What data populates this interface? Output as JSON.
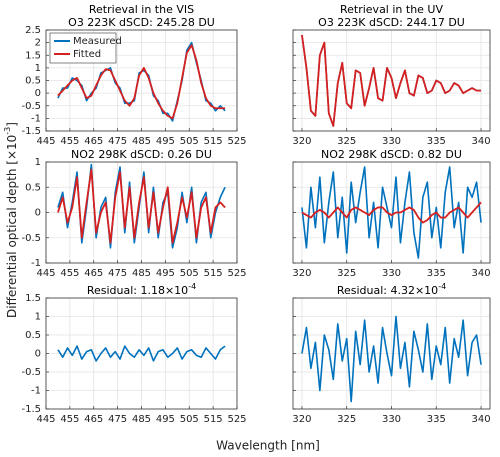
{
  "figure": {
    "xlabel": "Wavelength [nm]",
    "ylabel": "Differential optical depth [×10",
    "ylabel_sup": "-3",
    "ylabel_end": "]"
  },
  "chart_data": [
    {
      "type": "line",
      "title": [
        "Retrieval in the VIS",
        "O3 223K dSCD: 245.28 DU"
      ],
      "x": [
        450,
        452,
        454,
        456,
        458,
        460,
        462,
        464,
        466,
        468,
        470,
        472,
        474,
        476,
        478,
        480,
        482,
        484,
        486,
        488,
        490,
        492,
        494,
        496,
        498,
        500,
        502,
        504,
        506,
        508,
        510,
        512,
        514,
        516,
        518,
        520
      ],
      "series": [
        {
          "name": "Measured",
          "color": "#0072bd",
          "values": [
            -0.2,
            0.2,
            0.2,
            0.6,
            0.5,
            0.3,
            -0.3,
            0.0,
            0.2,
            0.8,
            0.9,
            1.0,
            0.4,
            0.2,
            -0.4,
            -0.4,
            -0.3,
            0.8,
            0.9,
            0.7,
            -0.1,
            -0.3,
            -0.8,
            -0.8,
            -1.1,
            -0.3,
            0.5,
            1.7,
            2.0,
            1.2,
            0.5,
            -0.3,
            -0.4,
            -0.7,
            -0.5,
            -0.7
          ]
        },
        {
          "name": "Fitted",
          "color": "#d62020",
          "values": [
            -0.1,
            0.1,
            0.3,
            0.5,
            0.6,
            0.2,
            -0.2,
            -0.1,
            0.3,
            0.7,
            0.95,
            0.9,
            0.5,
            0.1,
            -0.3,
            -0.5,
            -0.2,
            0.7,
            1.0,
            0.6,
            0.0,
            -0.4,
            -0.7,
            -0.9,
            -1.0,
            -0.4,
            0.6,
            1.6,
            1.9,
            1.3,
            0.4,
            -0.2,
            -0.5,
            -0.6,
            -0.6,
            -0.6
          ]
        }
      ],
      "xlim": [
        445,
        525
      ],
      "ylim": [
        -1.5,
        2.5
      ],
      "xticks": [
        445,
        455,
        465,
        475,
        485,
        495,
        505,
        515,
        525
      ],
      "yticks": [
        -1.5,
        -1,
        -0.5,
        0,
        0.5,
        1,
        1.5,
        2,
        2.5
      ],
      "ytick_labels": true,
      "grid": true,
      "legend": "northwest"
    },
    {
      "type": "line",
      "title": [
        "Retrieval in the UV",
        "O3 223K dSCD: 244.17 DU"
      ],
      "x": [
        320,
        320.5,
        321,
        321.5,
        322,
        322.5,
        323,
        323.5,
        324,
        324.5,
        325,
        325.5,
        326,
        326.5,
        327,
        327.5,
        328,
        328.5,
        329,
        329.5,
        330,
        330.5,
        331,
        331.5,
        332,
        332.5,
        333,
        333.5,
        334,
        334.5,
        335,
        335.5,
        336,
        336.5,
        337,
        337.5,
        338,
        338.5,
        339,
        339.5,
        340
      ],
      "series": [
        {
          "color": "#0072bd",
          "values": [
            2.3,
            1.0,
            -0.7,
            -0.9,
            1.5,
            2.0,
            -0.8,
            -1.3,
            0.4,
            1.2,
            -0.4,
            -0.6,
            0.9,
            0.8,
            -0.5,
            0.2,
            1.0,
            -0.2,
            -0.3,
            1.0,
            0.6,
            -0.2,
            0.4,
            0.9,
            0.0,
            -0.1,
            0.7,
            0.6,
            0.0,
            0.1,
            0.5,
            0.4,
            0.0,
            0.1,
            0.4,
            0.3,
            0.0,
            0.1,
            0.2,
            0.1,
            0.1
          ]
        },
        {
          "color": "#d62020",
          "values": [
            2.3,
            1.0,
            -0.7,
            -0.9,
            1.5,
            2.0,
            -0.8,
            -1.3,
            0.4,
            1.2,
            -0.4,
            -0.6,
            0.9,
            0.8,
            -0.5,
            0.2,
            1.0,
            -0.2,
            -0.3,
            1.0,
            0.6,
            -0.2,
            0.4,
            0.9,
            0.0,
            -0.1,
            0.7,
            0.6,
            0.0,
            0.1,
            0.5,
            0.4,
            0.0,
            0.1,
            0.4,
            0.3,
            0.0,
            0.1,
            0.2,
            0.1,
            0.1
          ]
        }
      ],
      "xlim": [
        319,
        341
      ],
      "ylim": [
        -1.5,
        2.5
      ],
      "xticks": [
        320,
        325,
        330,
        335,
        340
      ],
      "yticks": [
        -1.5,
        -1,
        -0.5,
        0,
        0.5,
        1,
        1.5,
        2,
        2.5
      ],
      "ytick_labels": false,
      "grid": true
    },
    {
      "type": "line",
      "title": [
        "NO2 298K dSCD: 0.26 DU"
      ],
      "x": [
        450,
        452,
        454,
        456,
        458,
        460,
        462,
        464,
        466,
        468,
        470,
        472,
        474,
        476,
        478,
        480,
        482,
        484,
        486,
        488,
        490,
        492,
        494,
        496,
        498,
        500,
        502,
        504,
        506,
        508,
        510,
        512,
        514,
        516,
        518,
        520
      ],
      "series": [
        {
          "color": "#0072bd",
          "values": [
            0.1,
            0.4,
            -0.3,
            0.2,
            0.8,
            -0.6,
            0.1,
            0.95,
            -0.5,
            0.1,
            0.3,
            -0.7,
            0.4,
            0.9,
            -0.4,
            0.6,
            -0.6,
            0.1,
            0.8,
            -0.4,
            0.5,
            -0.5,
            0.2,
            0.4,
            -0.7,
            -0.3,
            0.4,
            -0.2,
            0.5,
            -0.6,
            0.2,
            0.4,
            -0.5,
            0.0,
            0.3,
            0.5
          ]
        },
        {
          "color": "#d62020",
          "values": [
            0,
            0.3,
            -0.2,
            0.1,
            0.7,
            -0.5,
            0.2,
            0.85,
            -0.4,
            0.0,
            0.2,
            -0.6,
            0.3,
            0.8,
            -0.3,
            0.5,
            -0.5,
            0.2,
            0.7,
            -0.3,
            0.4,
            -0.4,
            0.1,
            0.5,
            -0.6,
            -0.2,
            0.3,
            -0.1,
            0.4,
            -0.5,
            0.1,
            0.3,
            -0.4,
            0.1,
            0.2,
            0.1
          ]
        }
      ],
      "xlim": [
        445,
        525
      ],
      "ylim": [
        -1,
        1
      ],
      "xticks": [
        445,
        455,
        465,
        475,
        485,
        495,
        505,
        515,
        525
      ],
      "yticks": [
        -1,
        -0.5,
        0,
        0.5,
        1
      ],
      "ytick_labels": true,
      "grid": true
    },
    {
      "type": "line",
      "title": [
        "NO2 298K dSCD: 0.82 DU"
      ],
      "x": [
        320,
        320.5,
        321,
        321.5,
        322,
        322.5,
        323,
        323.5,
        324,
        324.5,
        325,
        325.5,
        326,
        326.5,
        327,
        327.5,
        328,
        328.5,
        329,
        329.5,
        330,
        330.5,
        331,
        331.5,
        332,
        332.5,
        333,
        333.5,
        334,
        334.5,
        335,
        335.5,
        336,
        336.5,
        337,
        337.5,
        338,
        338.5,
        339,
        339.5,
        340
      ],
      "series": [
        {
          "color": "#0072bd",
          "values": [
            0.1,
            -0.7,
            0.5,
            -0.3,
            0.7,
            -0.6,
            0.2,
            0.8,
            -0.5,
            0.3,
            -0.8,
            0.6,
            -0.2,
            0.4,
            0.9,
            -0.5,
            0.2,
            -0.7,
            0.5,
            0.1,
            -0.3,
            0.7,
            -0.6,
            0.2,
            0.8,
            -0.4,
            -0.9,
            0.3,
            0.6,
            -0.5,
            0.1,
            -0.7,
            0.4,
            0.9,
            -0.3,
            0.2,
            -0.8,
            0.5,
            0.3,
            0.6,
            -0.2
          ]
        },
        {
          "color": "#d62020",
          "values": [
            0,
            -0.05,
            -0.1,
            0.0,
            0.05,
            0.0,
            -0.1,
            0.0,
            0.1,
            0.0,
            -0.1,
            0.05,
            0.1,
            0.05,
            0.0,
            -0.05,
            0.05,
            0.1,
            0.1,
            0.0,
            -0.05,
            0.0,
            0.0,
            0.05,
            0.1,
            0.05,
            -0.1,
            -0.2,
            -0.15,
            -0.05,
            0.0,
            -0.1,
            -0.1,
            0.0,
            0.05,
            0.1,
            0.0,
            -0.1,
            0.0,
            0.1,
            0.2
          ]
        }
      ],
      "xlim": [
        319,
        341
      ],
      "ylim": [
        -1,
        1
      ],
      "xticks": [
        320,
        325,
        330,
        335,
        340
      ],
      "yticks": [
        -1,
        -0.5,
        0,
        0.5,
        1
      ],
      "ytick_labels": false,
      "grid": true
    },
    {
      "type": "line",
      "title": [
        "Residual: 1.18×10"
      ],
      "title_sup": "-4",
      "x": [
        450,
        452,
        454,
        456,
        458,
        460,
        462,
        464,
        466,
        468,
        470,
        472,
        474,
        476,
        478,
        480,
        482,
        484,
        486,
        488,
        490,
        492,
        494,
        496,
        498,
        500,
        502,
        504,
        506,
        508,
        510,
        512,
        514,
        516,
        518,
        520
      ],
      "series": [
        {
          "color": "#0072bd",
          "values": [
            0.1,
            -0.1,
            0.15,
            -0.05,
            0.2,
            -0.15,
            0.05,
            0.1,
            -0.2,
            0.0,
            0.15,
            -0.1,
            0.05,
            -0.15,
            0.2,
            0.0,
            -0.1,
            0.1,
            -0.05,
            0.15,
            -0.2,
            0.05,
            0.1,
            -0.1,
            0.0,
            0.15,
            -0.15,
            0.05,
            0.1,
            -0.05,
            -0.1,
            0.15,
            0.0,
            -0.15,
            0.1,
            0.2
          ]
        }
      ],
      "xlim": [
        445,
        525
      ],
      "ylim": [
        -1.5,
        1.5
      ],
      "xticks": [
        445,
        455,
        465,
        475,
        485,
        495,
        505,
        515,
        525
      ],
      "yticks": [
        -1.5,
        -1,
        -0.5,
        0,
        0.5,
        1,
        1.5
      ],
      "ytick_labels": true,
      "grid": true
    },
    {
      "type": "line",
      "title": [
        "Residual: 4.32×10"
      ],
      "title_sup": "-4",
      "x": [
        320,
        320.5,
        321,
        321.5,
        322,
        322.5,
        323,
        323.5,
        324,
        324.5,
        325,
        325.5,
        326,
        326.5,
        327,
        327.5,
        328,
        328.5,
        329,
        329.5,
        330,
        330.5,
        331,
        331.5,
        332,
        332.5,
        333,
        333.5,
        334,
        334.5,
        335,
        335.5,
        336,
        336.5,
        337,
        337.5,
        338,
        338.5,
        339,
        339.5,
        340
      ],
      "series": [
        {
          "color": "#0072bd",
          "values": [
            0.0,
            0.7,
            -0.4,
            0.3,
            -1.0,
            0.5,
            0.1,
            -0.7,
            0.8,
            -0.2,
            0.4,
            -1.3,
            0.6,
            -0.3,
            0.9,
            -0.5,
            0.2,
            -0.8,
            0.7,
            0.0,
            -0.6,
            1.0,
            -0.4,
            0.3,
            -0.9,
            0.6,
            0.1,
            -0.5,
            0.8,
            -0.7,
            0.2,
            -0.3,
            0.7,
            -0.8,
            0.4,
            -0.1,
            0.9,
            -0.6,
            0.3,
            0.5,
            -0.3
          ]
        }
      ],
      "xlim": [
        319,
        341
      ],
      "ylim": [
        -1.5,
        1.5
      ],
      "xticks": [
        320,
        325,
        330,
        335,
        340
      ],
      "yticks": [
        -1.5,
        -1,
        -0.5,
        0,
        0.5,
        1,
        1.5
      ],
      "ytick_labels": false,
      "grid": true
    }
  ]
}
